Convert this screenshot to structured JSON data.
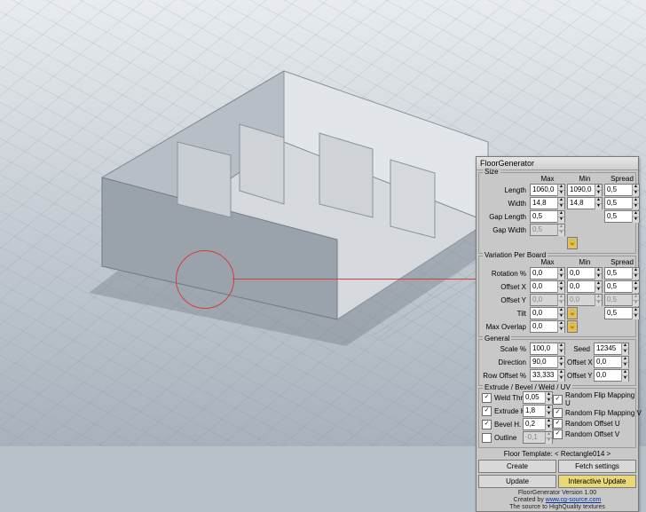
{
  "viewport": {
    "bg_top": "#e8ecef",
    "bg_bot": "#a8b2bc",
    "cursor_color": "#d04040"
  },
  "panel": {
    "title": "FloorGenerator",
    "size": {
      "label": "Size",
      "headers": [
        "",
        "Max",
        "Min",
        "Spread"
      ],
      "rows": [
        {
          "label": "Length",
          "max": "1060,0",
          "min": "1090,0",
          "spread": "0,5",
          "min_disabled": false
        },
        {
          "label": "Width",
          "max": "14,8",
          "min": "14,8",
          "spread": "0,5",
          "min_disabled": false
        },
        {
          "label": "Gap Length",
          "max": "0,5",
          "spread": "0,5"
        },
        {
          "label": "Gap Width",
          "max": "0,5",
          "disabled": true
        }
      ]
    },
    "variation": {
      "label": "Variation Per Board",
      "headers": [
        "",
        "Max",
        "Min",
        "Spread"
      ],
      "rows": [
        {
          "label": "Rotation %",
          "max": "0,0",
          "min": "0,0",
          "spread": "0,5"
        },
        {
          "label": "Offset X",
          "max": "0,0",
          "min": "0,0",
          "spread": "0,5"
        },
        {
          "label": "Offset Y",
          "max": "0,0",
          "min": "0,0",
          "spread": "0,5",
          "disabled": true
        },
        {
          "label": "Tilt",
          "max": "0,0",
          "spread": "0,5"
        },
        {
          "label": "Max Overlap",
          "max": "0,0"
        }
      ]
    },
    "general": {
      "label": "General",
      "rows": [
        {
          "l1": "Scale %",
          "v1": "100,0",
          "l2": "Seed",
          "v2": "12345"
        },
        {
          "l1": "Direction",
          "v1": "90,0",
          "l2": "Offset X",
          "v2": "0,0"
        },
        {
          "l1": "Row Offset %",
          "v1": "33,333",
          "l2": "Offset Y",
          "v2": "0,0"
        }
      ]
    },
    "extrude": {
      "label": "Extrude / Bevel / Weld / UV",
      "left": [
        {
          "chk": true,
          "label": "Weld   Thr.",
          "val": "0,05"
        },
        {
          "chk": true,
          "label": "Extrude  H.",
          "val": "1,8"
        },
        {
          "chk": true,
          "label": "Bevel    H.",
          "val": "0,2"
        },
        {
          "chk": false,
          "label": "Outline",
          "val": "-0,1",
          "disabled": true
        }
      ],
      "right": [
        {
          "chk": true,
          "label": "Random Flip Mapping U"
        },
        {
          "chk": true,
          "label": "Random Flip Mapping V"
        },
        {
          "chk": true,
          "label": "Random Offset U"
        },
        {
          "chk": true,
          "label": "Random Offset V"
        }
      ]
    },
    "template": {
      "prefix": "Floor Template:",
      "value": "< Rectangle014 >"
    },
    "buttons": {
      "create": "Create",
      "fetch": "Fetch settings",
      "update": "Update",
      "interactive": "Interactive Update"
    },
    "footer": {
      "line1": "FloorGenerator Version 1.00",
      "line2_pre": "Created by ",
      "line2_link": "www.cg-source.com",
      "line3": "The source to HighQuality textures"
    }
  }
}
